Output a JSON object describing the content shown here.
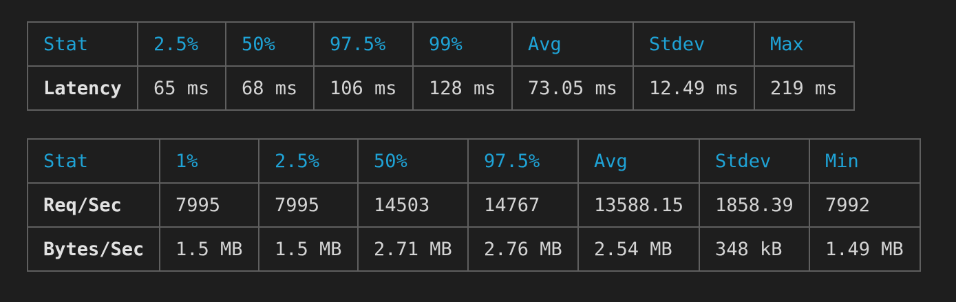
{
  "latency": {
    "headers": [
      "Stat",
      "2.5%",
      "50%",
      "97.5%",
      "99%",
      "Avg",
      "Stdev",
      "Max"
    ],
    "rows": [
      {
        "label": "Latency",
        "values": [
          "65 ms",
          "68 ms",
          "106 ms",
          "128 ms",
          "73.05 ms",
          "12.49 ms",
          "219 ms"
        ]
      }
    ]
  },
  "throughput": {
    "headers": [
      "Stat",
      "1%",
      "2.5%",
      "50%",
      "97.5%",
      "Avg",
      "Stdev",
      "Min"
    ],
    "rows": [
      {
        "label": "Req/Sec",
        "values": [
          "7995",
          "7995",
          "14503",
          "14767",
          "13588.15",
          "1858.39",
          "7992"
        ]
      },
      {
        "label": "Bytes/Sec",
        "values": [
          "1.5 MB",
          "1.5 MB",
          "2.71 MB",
          "2.76 MB",
          "2.54 MB",
          "348 kB",
          "1.49 MB"
        ]
      }
    ]
  },
  "colors": {
    "background": "#1e1e1e",
    "header_text": "#1fa3d6",
    "body_text": "#d4d4d4",
    "border": "#5f5f5f"
  }
}
